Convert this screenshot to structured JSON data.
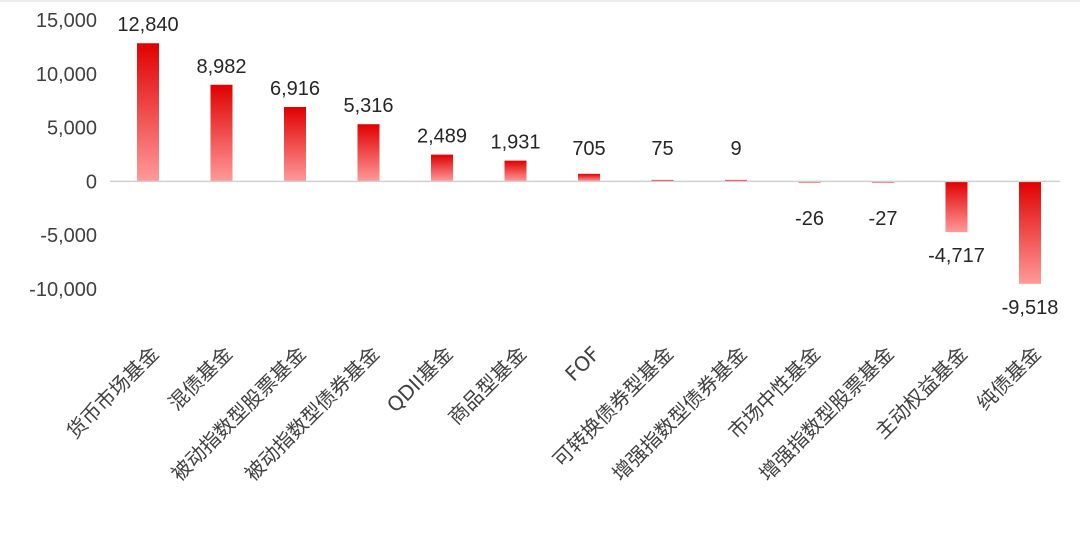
{
  "chart_data": {
    "type": "bar",
    "categories": [
      "货币市场基金",
      "混债基金",
      "被动指数型股票基金",
      "被动指数型债券基金",
      "QDII基金",
      "商品型基金",
      "FOF",
      "可转换债券型基金",
      "增强指数型债券基金",
      "市场中性基金",
      "增强指数型股票基金",
      "主动权益基金",
      "纯债基金"
    ],
    "values": [
      12840,
      8982,
      6916,
      5316,
      2489,
      1931,
      705,
      75,
      9,
      -26,
      -27,
      -4717,
      -9518
    ],
    "value_labels": [
      "12,840",
      "8,982",
      "6,916",
      "5,316",
      "2,489",
      "1,931",
      "705",
      "75",
      "9",
      "-26",
      "-27",
      "-4,717",
      "-9,518"
    ],
    "y_ticks": [
      15000,
      10000,
      5000,
      0,
      -5000,
      -10000
    ],
    "y_tick_labels": [
      "15,000",
      "10,000",
      "5,000",
      "0",
      "-5,000",
      "-10,000"
    ],
    "ylim": [
      -10000,
      15000
    ],
    "title": "",
    "xlabel": "",
    "ylabel": "",
    "grid": false,
    "colors": {
      "bar_dark": "#e00000",
      "bar_light": "#ff9a9a"
    }
  }
}
